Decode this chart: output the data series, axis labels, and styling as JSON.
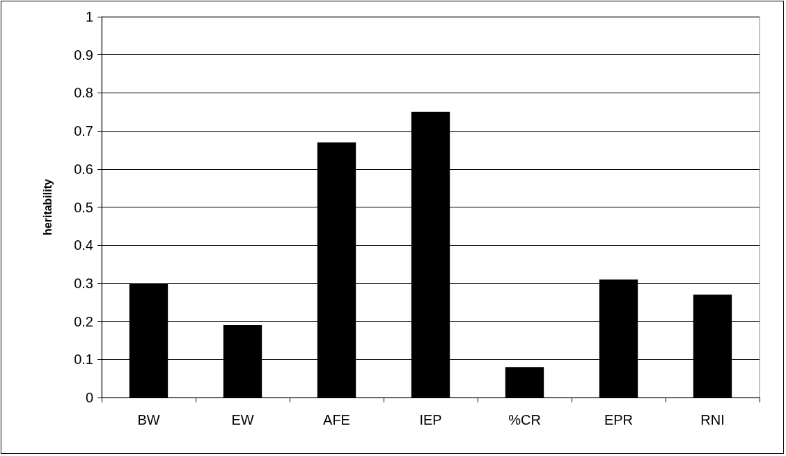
{
  "chart_data": {
    "type": "bar",
    "ylabel": "heritability",
    "categories": [
      "BW",
      "EW",
      "AFE",
      "IEP",
      "%CR",
      "EPR",
      "RNI"
    ],
    "values": [
      0.3,
      0.19,
      0.67,
      0.75,
      0.08,
      0.31,
      0.27
    ],
    "color": "#000000",
    "ylim": [
      0,
      1
    ],
    "yticks": [
      0,
      0.1,
      0.2,
      0.3,
      0.4,
      0.5,
      0.6,
      0.7,
      0.8,
      0.9,
      1
    ],
    "grid": "y"
  }
}
